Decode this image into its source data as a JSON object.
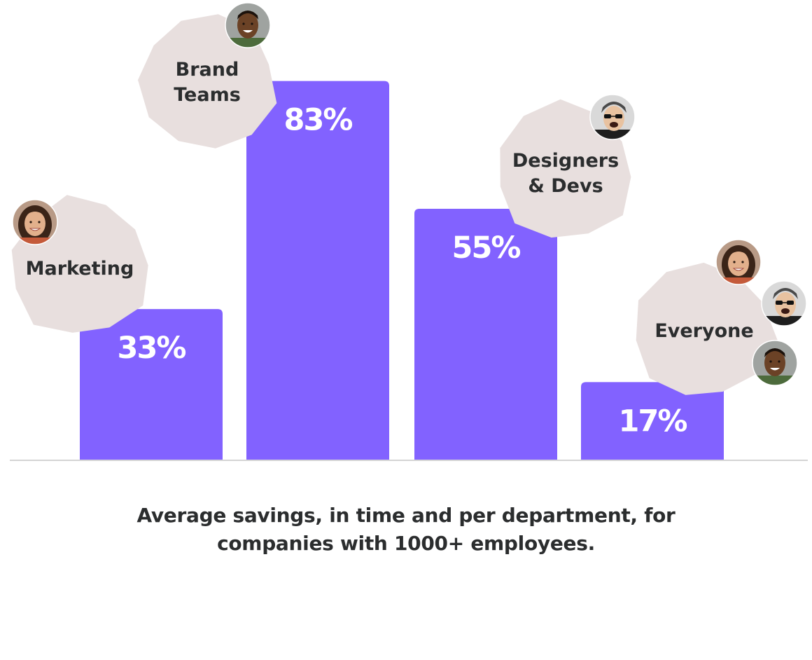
{
  "colors": {
    "bar": "#8262ff",
    "bar_label": "#ffffff",
    "badge": "#e8dfde",
    "badge_text": "#2b2d2e",
    "axis": "#d4d4d4",
    "caption": "#2b2d2e"
  },
  "chart_data": {
    "type": "bar",
    "categories": [
      "Marketing",
      "Brand Teams",
      "Designers & Devs",
      "Everyone"
    ],
    "values": [
      33,
      83,
      55,
      17
    ],
    "value_labels": [
      "33%",
      "83%",
      "55%",
      "17%"
    ],
    "ylim": [
      0,
      100
    ],
    "grid": false,
    "legend": "none",
    "badges": [
      {
        "lines": [
          "Marketing"
        ],
        "avatars": [
          "avatar-woman-smiling"
        ]
      },
      {
        "lines": [
          "Brand",
          "Teams"
        ],
        "avatars": [
          "avatar-man-smiling"
        ]
      },
      {
        "lines": [
          "Designers",
          "& Devs"
        ],
        "avatars": [
          "avatar-man-sunglasses"
        ]
      },
      {
        "lines": [
          "Everyone"
        ],
        "avatars": [
          "avatar-woman-smiling",
          "avatar-man-sunglasses",
          "avatar-man-smiling"
        ]
      }
    ]
  },
  "caption": {
    "line1": "Average savings, in time and per department, for",
    "line2": "companies with 1000+ employees."
  }
}
